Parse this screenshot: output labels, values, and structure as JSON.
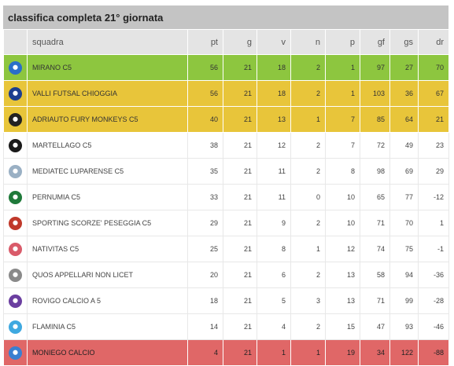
{
  "title": "classifica completa 21° giornata",
  "columns": [
    "",
    "squadra",
    "pt",
    "g",
    "v",
    "n",
    "p",
    "gf",
    "gs",
    "dr"
  ],
  "rows": [
    {
      "team": "MIRANO C5",
      "pt": "56",
      "g": "21",
      "v": "18",
      "n": "2",
      "p": "1",
      "gf": "97",
      "gs": "27",
      "dr": "70",
      "zone": "green",
      "logo_icon": "mirano-logo-icon",
      "logo_color": "#2a6fc9"
    },
    {
      "team": "VALLI FUTSAL CHIOGGIA",
      "pt": "56",
      "g": "21",
      "v": "18",
      "n": "2",
      "p": "1",
      "gf": "103",
      "gs": "36",
      "dr": "67",
      "zone": "yellow",
      "logo_icon": "valli-logo-icon",
      "logo_color": "#1d3f8f"
    },
    {
      "team": "ADRIAUTO FURY MONKEYS C5",
      "pt": "40",
      "g": "21",
      "v": "13",
      "n": "1",
      "p": "7",
      "gf": "85",
      "gs": "64",
      "dr": "21",
      "zone": "yellow",
      "logo_icon": "fury-monkeys-logo-icon",
      "logo_color": "#222222"
    },
    {
      "team": "MARTELLAGO C5",
      "pt": "38",
      "g": "21",
      "v": "12",
      "n": "2",
      "p": "7",
      "gf": "72",
      "gs": "49",
      "dr": "23",
      "zone": "",
      "logo_icon": "martellago-logo-icon",
      "logo_color": "#1a1a1a"
    },
    {
      "team": "MEDIATEC LUPARENSE C5",
      "pt": "35",
      "g": "21",
      "v": "11",
      "n": "2",
      "p": "8",
      "gf": "98",
      "gs": "69",
      "dr": "29",
      "zone": "",
      "logo_icon": "luparense-logo-icon",
      "logo_color": "#9ab0c4"
    },
    {
      "team": "PERNUMIA C5",
      "pt": "33",
      "g": "21",
      "v": "11",
      "n": "0",
      "p": "10",
      "gf": "65",
      "gs": "77",
      "dr": "-12",
      "zone": "",
      "logo_icon": "pernumia-logo-icon",
      "logo_color": "#1f7a3a"
    },
    {
      "team": "SPORTING SCORZE' PESEGGIA C5",
      "pt": "29",
      "g": "21",
      "v": "9",
      "n": "2",
      "p": "10",
      "gf": "71",
      "gs": "70",
      "dr": "1",
      "zone": "",
      "logo_icon": "sporting-scorze-logo-icon",
      "logo_color": "#c0392b"
    },
    {
      "team": "NATIVITAS C5",
      "pt": "25",
      "g": "21",
      "v": "8",
      "n": "1",
      "p": "12",
      "gf": "74",
      "gs": "75",
      "dr": "-1",
      "zone": "",
      "logo_icon": "nativitas-logo-icon",
      "logo_color": "#d95b6a"
    },
    {
      "team": "QUOS APPELLARI NON LICET",
      "pt": "20",
      "g": "21",
      "v": "6",
      "n": "2",
      "p": "13",
      "gf": "58",
      "gs": "94",
      "dr": "-36",
      "zone": "",
      "logo_icon": "quos-logo-icon",
      "logo_color": "#8a8a8a"
    },
    {
      "team": "ROVIGO CALCIO A 5",
      "pt": "18",
      "g": "21",
      "v": "5",
      "n": "3",
      "p": "13",
      "gf": "71",
      "gs": "99",
      "dr": "-28",
      "zone": "",
      "logo_icon": "rovigo-logo-icon",
      "logo_color": "#6b3fa0"
    },
    {
      "team": "FLAMINIA C5",
      "pt": "14",
      "g": "21",
      "v": "4",
      "n": "2",
      "p": "15",
      "gf": "47",
      "gs": "93",
      "dr": "-46",
      "zone": "",
      "logo_icon": "flaminia-logo-icon",
      "logo_color": "#3fa9e0"
    },
    {
      "team": "MONIEGO CALCIO",
      "pt": "4",
      "g": "21",
      "v": "1",
      "n": "1",
      "p": "19",
      "gf": "34",
      "gs": "122",
      "dr": "-88",
      "zone": "red",
      "logo_icon": "moniego-logo-icon",
      "logo_color": "#3a7fd0"
    }
  ],
  "colors": {
    "champion": "#8dc63f",
    "playoff": "#e8c53a",
    "relegation": "#e06767",
    "header_bar": "#c4c4c4",
    "column_header": "#e4e4e4"
  }
}
